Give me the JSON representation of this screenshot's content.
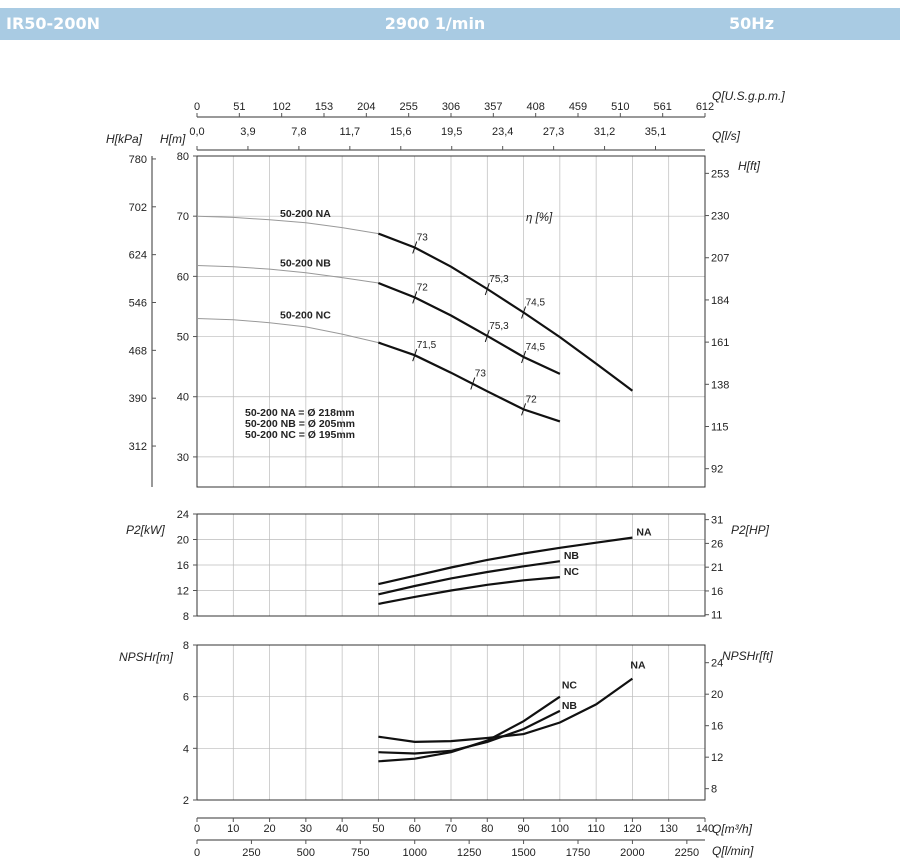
{
  "header": {
    "model": "IR50-200N",
    "speed": "2900 1/min",
    "frequency": "50Hz"
  },
  "chart_data": [
    {
      "type": "line",
      "title": "",
      "xlabel": "Q[m³/h]",
      "ylabel": "H[m]",
      "x_range": [
        0,
        140
      ],
      "x_ticks": [
        "0",
        "10",
        "20",
        "30",
        "40",
        "50",
        "60",
        "70",
        "80",
        "90",
        "100",
        "110",
        "120",
        "130",
        "140"
      ],
      "y_range": [
        25,
        80
      ],
      "y_ticks": [
        "30",
        "40",
        "50",
        "60",
        "70",
        "80"
      ],
      "grid": true,
      "secondary_axes": {
        "top_usgpm": {
          "label": "Q[U.S.g.p.m.]",
          "ticks": [
            "0",
            "51",
            "102",
            "153",
            "204",
            "255",
            "306",
            "357",
            "408",
            "459",
            "510",
            "561",
            "612"
          ]
        },
        "top_ls": {
          "label": "Q[l/s]",
          "ticks": [
            "0,0",
            "3,9",
            "7,8",
            "11,7",
            "15,6",
            "19,5",
            "23,4",
            "27,3",
            "31,2",
            "35,1"
          ]
        },
        "left_kpa": {
          "label": "H[kPa]",
          "ticks": [
            {
              "value": 780,
              "label": "780"
            },
            {
              "value": 702,
              "label": "702"
            },
            {
              "value": 624,
              "label": "624"
            },
            {
              "value": 546,
              "label": "546"
            },
            {
              "value": 468,
              "label": "468"
            },
            {
              "value": 390,
              "label": "390"
            },
            {
              "value": 312,
              "label": "312"
            }
          ]
        },
        "right_ft": {
          "label": "H[ft]",
          "ticks": [
            {
              "value": 253,
              "label": "253"
            },
            {
              "value": 230,
              "label": "230"
            },
            {
              "value": 207,
              "label": "207"
            },
            {
              "value": 184,
              "label": "184"
            },
            {
              "value": 161,
              "label": "161"
            },
            {
              "value": 138,
              "label": "138"
            },
            {
              "value": 115,
              "label": "115"
            },
            {
              "value": 92,
              "label": "92"
            }
          ]
        },
        "bottom_lmin": {
          "label": "Q[l/min]",
          "ticks": [
            "0",
            "250",
            "500",
            "750",
            "1000",
            "1250",
            "1500",
            "1750",
            "2000",
            "2250"
          ]
        }
      },
      "series": [
        {
          "name": "50-200 NA",
          "dashed": [
            [
              0,
              70
            ],
            [
              10,
              69.8
            ],
            [
              20,
              69.4
            ],
            [
              30,
              68.9
            ],
            [
              40,
              68.1
            ],
            [
              50,
              67.1
            ]
          ],
          "solid": [
            [
              50,
              67.1
            ],
            [
              60,
              64.8
            ],
            [
              70,
              61.6
            ],
            [
              80,
              57.9
            ],
            [
              90,
              54
            ],
            [
              100,
              49.9
            ],
            [
              110,
              45.5
            ],
            [
              120,
              41
            ]
          ]
        },
        {
          "name": "50-200 NB",
          "dashed": [
            [
              0,
              61.8
            ],
            [
              10,
              61.6
            ],
            [
              20,
              61.2
            ],
            [
              30,
              60.6
            ],
            [
              40,
              59.8
            ],
            [
              50,
              58.9
            ]
          ],
          "solid": [
            [
              50,
              58.9
            ],
            [
              60,
              56.5
            ],
            [
              70,
              53.5
            ],
            [
              80,
              50.1
            ],
            [
              90,
              46.6
            ],
            [
              100,
              43.8
            ]
          ]
        },
        {
          "name": "50-200 NC",
          "dashed": [
            [
              0,
              53
            ],
            [
              10,
              52.8
            ],
            [
              20,
              52.3
            ],
            [
              30,
              51.6
            ],
            [
              40,
              50.4
            ],
            [
              50,
              49
            ]
          ],
          "solid": [
            [
              50,
              49
            ],
            [
              60,
              46.9
            ],
            [
              70,
              44
            ],
            [
              80,
              40.9
            ],
            [
              90,
              37.9
            ],
            [
              100,
              35.9
            ]
          ]
        }
      ],
      "efficiency_label": "η [%]",
      "efficiency_marks": [
        {
          "label": "73",
          "x": 60,
          "y": 64.8
        },
        {
          "label": "75,3",
          "x": 80,
          "y": 57.9
        },
        {
          "label": "74,5",
          "x": 90,
          "y": 54
        },
        {
          "label": "72",
          "x": 60,
          "y": 56.5
        },
        {
          "label": "75,3",
          "x": 80,
          "y": 50.1
        },
        {
          "label": "74,5",
          "x": 90,
          "y": 46.6
        },
        {
          "label": "71,5",
          "x": 60,
          "y": 46.9
        },
        {
          "label": "73",
          "x": 76,
          "y": 42.2
        },
        {
          "label": "72",
          "x": 90,
          "y": 37.9
        }
      ],
      "impeller_notes": [
        "50-200 NA = Ø 218mm",
        "50-200 NB = Ø 205mm",
        "50-200 NC = Ø 195mm"
      ]
    },
    {
      "type": "line",
      "ylabel": "P2[kW]",
      "y_range": [
        8,
        24
      ],
      "y_ticks": [
        "8",
        "12",
        "16",
        "20",
        "24"
      ],
      "secondary_axes": {
        "right_hp": {
          "label": "P2[HP]",
          "ticks": [
            {
              "value": 31,
              "label": "31"
            },
            {
              "value": 26,
              "label": "26"
            },
            {
              "value": 21,
              "label": "21"
            },
            {
              "value": 16,
              "label": "16"
            },
            {
              "value": 11,
              "label": "11"
            }
          ]
        }
      },
      "series": [
        {
          "name": "NA",
          "points": [
            [
              50,
              13
            ],
            [
              60,
              14.3
            ],
            [
              70,
              15.6
            ],
            [
              80,
              16.8
            ],
            [
              90,
              17.8
            ],
            [
              100,
              18.7
            ],
            [
              110,
              19.5
            ],
            [
              120,
              20.3
            ]
          ]
        },
        {
          "name": "NB",
          "points": [
            [
              50,
              11.4
            ],
            [
              60,
              12.7
            ],
            [
              70,
              13.9
            ],
            [
              80,
              14.9
            ],
            [
              90,
              15.8
            ],
            [
              100,
              16.6
            ]
          ]
        },
        {
          "name": "NC",
          "points": [
            [
              50,
              9.9
            ],
            [
              60,
              11
            ],
            [
              70,
              12
            ],
            [
              80,
              12.9
            ],
            [
              90,
              13.6
            ],
            [
              100,
              14.1
            ]
          ]
        }
      ]
    },
    {
      "type": "line",
      "ylabel": "NPSHr[m]",
      "y_range": [
        2,
        8
      ],
      "y_ticks": [
        "2",
        "4",
        "6",
        "8"
      ],
      "secondary_axes": {
        "right_ft": {
          "label": "NPSHr[ft]",
          "ticks": [
            {
              "value": 24,
              "label": "24"
            },
            {
              "value": 20,
              "label": "20"
            },
            {
              "value": 16,
              "label": "16"
            },
            {
              "value": 12,
              "label": "12"
            },
            {
              "value": 8,
              "label": "8"
            }
          ]
        }
      },
      "series": [
        {
          "name": "NA",
          "points": [
            [
              50,
              4.45
            ],
            [
              60,
              4.25
            ],
            [
              70,
              4.28
            ],
            [
              80,
              4.4
            ],
            [
              90,
              4.55
            ],
            [
              100,
              5
            ],
            [
              110,
              5.7
            ],
            [
              120,
              6.7
            ]
          ]
        },
        {
          "name": "NB",
          "points": [
            [
              50,
              3.85
            ],
            [
              60,
              3.8
            ],
            [
              70,
              3.9
            ],
            [
              80,
              4.25
            ],
            [
              90,
              4.75
            ],
            [
              100,
              5.45
            ]
          ]
        },
        {
          "name": "NC",
          "points": [
            [
              50,
              3.5
            ],
            [
              60,
              3.6
            ],
            [
              70,
              3.85
            ],
            [
              80,
              4.3
            ],
            [
              90,
              5.05
            ],
            [
              100,
              6
            ]
          ]
        }
      ]
    }
  ]
}
